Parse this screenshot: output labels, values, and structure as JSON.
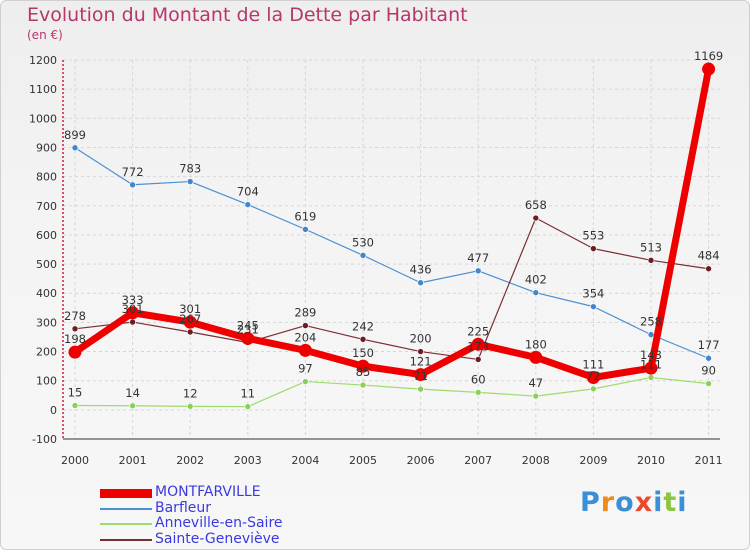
{
  "title": "Evolution du Montant de la Dette par Habitant",
  "subtitle": "(en €)",
  "chart_data": {
    "type": "line",
    "x": [
      "2000",
      "2001",
      "2002",
      "2003",
      "2004",
      "2005",
      "2006",
      "2007",
      "2008",
      "2009",
      "2010",
      "2011"
    ],
    "ylim": [
      -100,
      1200
    ],
    "yticks": [
      -100,
      0,
      100,
      200,
      300,
      400,
      500,
      600,
      700,
      800,
      900,
      1000,
      1100,
      1200
    ],
    "grid": true,
    "legend_position": "bottom-left",
    "series": [
      {
        "name": "Barfleur",
        "color": "#4a8fd0",
        "marker": "#3f86cc",
        "width": 1.2,
        "values": [
          899,
          772,
          783,
          704,
          619,
          530,
          436,
          477,
          402,
          354,
          258,
          177
        ]
      },
      {
        "name": "Anneville-en-Saire",
        "color": "#9fdc6e",
        "marker": "#88d157",
        "width": 1.2,
        "values": [
          15,
          14,
          12,
          11,
          97,
          85,
          71,
          60,
          47,
          72,
          111,
          90
        ]
      },
      {
        "name": "Sainte-Geneviève",
        "color": "#7a2e34",
        "marker": "#6b1d22",
        "width": 1.2,
        "values": [
          278,
          301,
          267,
          231,
          289,
          242,
          200,
          173,
          658,
          553,
          513,
          484
        ]
      },
      {
        "name": "MONTFARVILLE",
        "color": "#ee0000",
        "marker": "#ee0000",
        "width": 7,
        "values": [
          198,
          333,
          301,
          245,
          204,
          150,
          121,
          225,
          180,
          111,
          143,
          1169
        ]
      }
    ]
  },
  "legend": [
    {
      "name": "MONTFARVILLE",
      "color": "#ee0000",
      "thickness": 9
    },
    {
      "name": "Barfleur",
      "color": "#4a8fd0",
      "thickness": 2
    },
    {
      "name": "Anneville-en-Saire",
      "color": "#9fdc6e",
      "thickness": 2
    },
    {
      "name": "Sainte-Geneviève",
      "color": "#7a2e34",
      "thickness": 2
    }
  ],
  "logo": {
    "text": "Proxiti",
    "letters": [
      {
        "char": "P",
        "color": "#3a8fd6"
      },
      {
        "char": "r",
        "color": "#f08a1c"
      },
      {
        "char": "o",
        "color": "#3a8fd6"
      },
      {
        "char": "x",
        "color": "#e84a2a"
      },
      {
        "char": "i",
        "color": "#3a8fd6"
      },
      {
        "char": "t",
        "color": "#8cc63f"
      },
      {
        "char": "i",
        "color": "#3a8fd6"
      }
    ]
  }
}
